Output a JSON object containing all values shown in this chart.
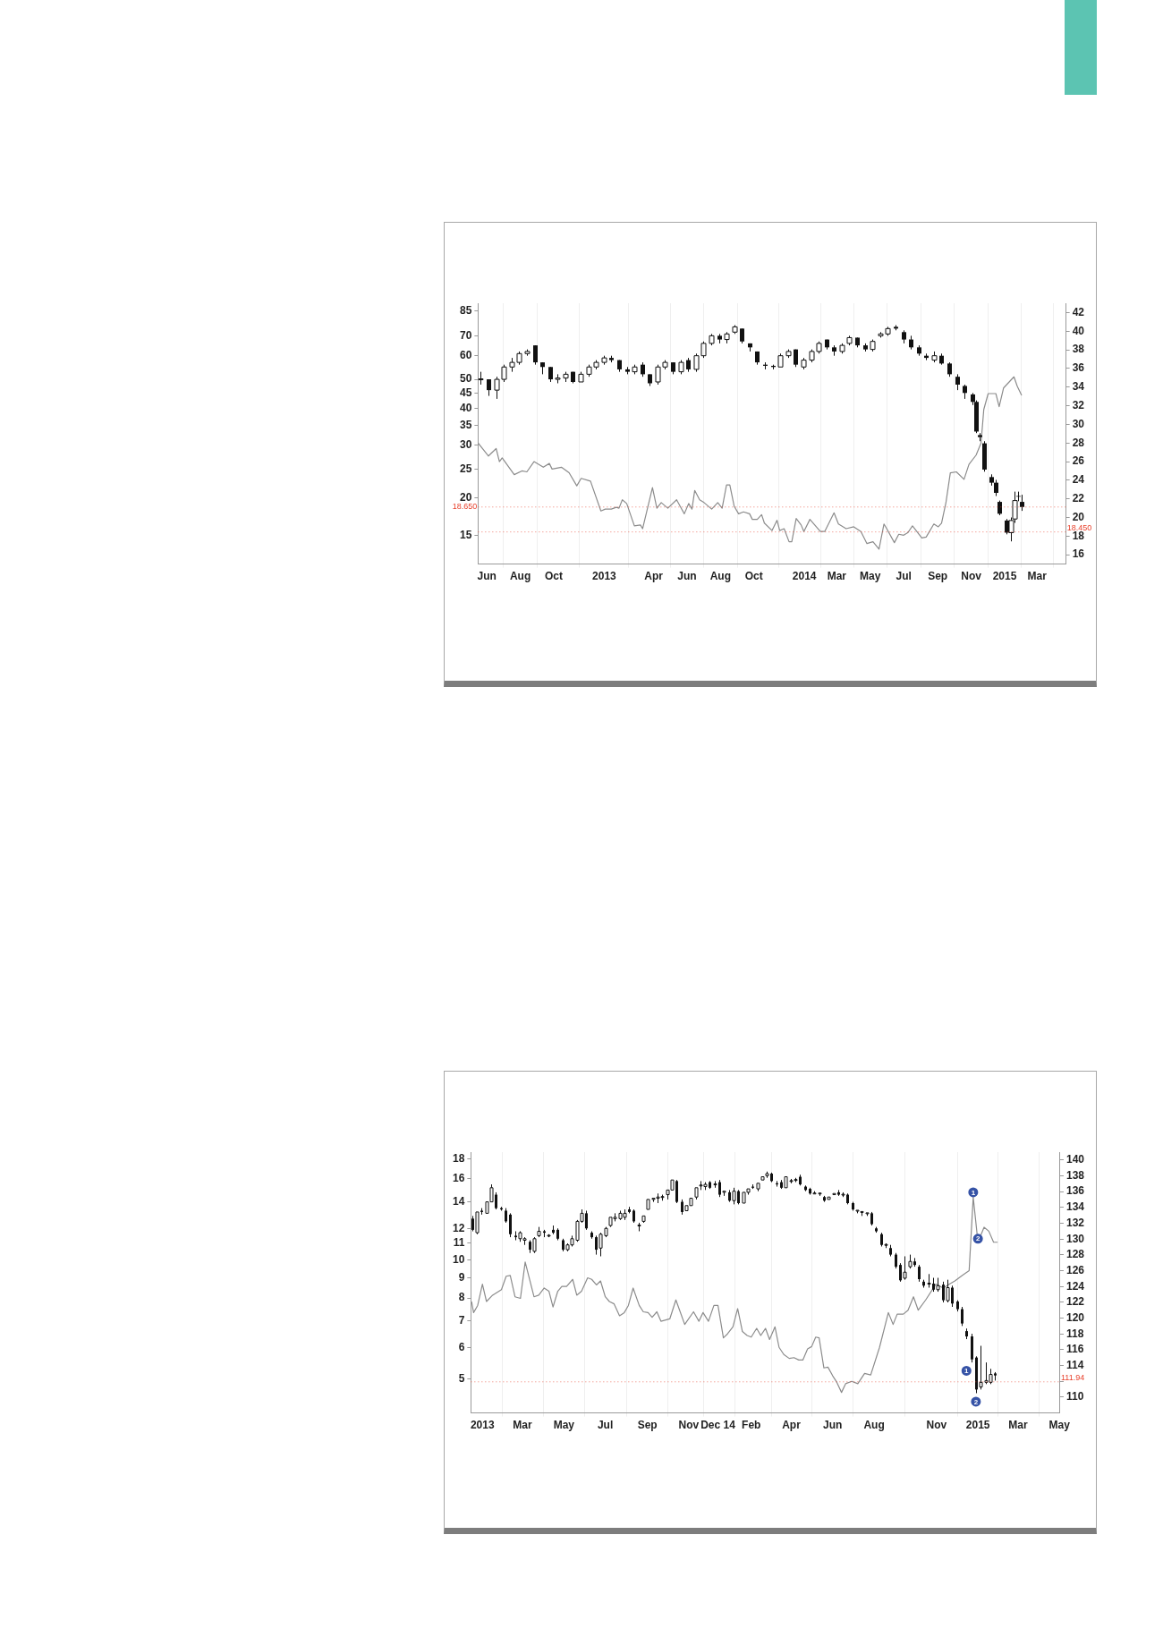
{
  "chart_data": [
    {
      "type": "candlestick",
      "color": "#111111",
      "log": true,
      "grid": "x",
      "xlim": [
        "2012-05-16",
        "2015-04-23"
      ],
      "xticks": [
        {
          "value": "2012-06-01",
          "label": "Jun"
        },
        {
          "value": "2012-08-01",
          "label": "Aug"
        },
        {
          "value": "2012-10-01",
          "label": "Oct"
        },
        {
          "value": "2013-01-01",
          "label": "2013"
        },
        {
          "value": "2013-04-01",
          "label": "Apr"
        },
        {
          "value": "2013-06-01",
          "label": "Jun"
        },
        {
          "value": "2013-08-01",
          "label": "Aug"
        },
        {
          "value": "2013-10-01",
          "label": "Oct"
        },
        {
          "value": "2014-01-01",
          "label": "2014"
        },
        {
          "value": "2014-03-01",
          "label": "Mar"
        },
        {
          "value": "2014-05-01",
          "label": "May"
        },
        {
          "value": "2014-07-01",
          "label": "Jul"
        },
        {
          "value": "2014-09-01",
          "label": "Sep"
        },
        {
          "value": "2014-11-01",
          "label": "Nov"
        },
        {
          "value": "2015-01-01",
          "label": "2015"
        },
        {
          "value": "2015-03-01",
          "label": "Mar"
        }
      ],
      "ylim": [
        12,
        90
      ],
      "yticks": [
        15,
        20,
        25,
        30,
        35,
        40,
        45,
        50,
        60,
        70,
        85
      ],
      "y2lim": [
        15,
        43
      ],
      "y2ticks": [
        16,
        18,
        20,
        22,
        24,
        26,
        28,
        30,
        32,
        34,
        36,
        38,
        40,
        42
      ],
      "x": [
        "2012-05-21",
        "2012-06-04",
        "2012-06-18",
        "2012-07-02",
        "2012-07-16",
        "2012-07-30",
        "2012-08-13",
        "2012-08-27",
        "2012-09-10",
        "2012-09-24",
        "2012-10-08",
        "2012-10-22",
        "2012-11-05",
        "2012-11-19",
        "2012-12-03",
        "2012-12-17",
        "2012-12-31",
        "2013-01-14",
        "2013-01-28",
        "2013-02-11",
        "2013-02-25",
        "2013-03-11",
        "2013-03-25",
        "2013-04-08",
        "2013-04-22",
        "2013-05-06",
        "2013-05-20",
        "2013-06-03",
        "2013-06-17",
        "2013-07-01",
        "2013-07-15",
        "2013-07-29",
        "2013-08-12",
        "2013-08-26",
        "2013-09-09",
        "2013-09-23",
        "2013-10-07",
        "2013-10-21",
        "2013-11-04",
        "2013-11-18",
        "2013-12-02",
        "2013-12-16",
        "2013-12-30",
        "2014-01-13",
        "2014-01-27",
        "2014-02-10",
        "2014-02-24",
        "2014-03-10",
        "2014-03-24",
        "2014-04-07",
        "2014-04-21",
        "2014-05-05",
        "2014-05-19",
        "2014-06-02",
        "2014-06-16",
        "2014-06-30",
        "2014-07-14",
        "2014-07-28",
        "2014-08-11",
        "2014-08-25",
        "2014-09-08",
        "2014-09-22",
        "2014-10-06",
        "2014-10-20",
        "2014-11-03",
        "2014-11-10",
        "2014-11-17",
        "2014-11-24",
        "2014-12-08",
        "2014-12-15",
        "2014-12-22",
        "2015-01-05",
        "2015-01-12",
        "2015-01-19",
        "2015-01-26",
        "2015-02-01"
      ],
      "ohlc": [
        [
          50,
          53,
          48,
          50
        ],
        [
          50,
          50,
          44,
          46
        ],
        [
          46,
          51,
          43,
          50
        ],
        [
          50,
          56,
          49,
          55
        ],
        [
          55,
          59,
          53,
          57
        ],
        [
          57,
          62,
          56,
          61
        ],
        [
          61,
          63,
          60,
          62
        ],
        [
          65,
          65,
          56,
          57
        ],
        [
          57,
          57,
          52,
          55
        ],
        [
          55,
          55,
          49,
          50
        ],
        [
          50,
          52,
          48.5,
          50.5
        ],
        [
          50.5,
          53,
          49,
          52
        ],
        [
          53,
          53,
          48.5,
          49
        ],
        [
          49,
          53,
          48.5,
          52
        ],
        [
          52,
          56,
          51,
          55
        ],
        [
          55,
          58,
          54,
          57
        ],
        [
          57,
          60,
          56,
          59
        ],
        [
          59,
          60,
          57,
          58
        ],
        [
          58,
          58,
          53,
          54
        ],
        [
          54,
          55,
          52,
          53
        ],
        [
          53,
          56,
          52,
          55
        ],
        [
          56,
          57,
          51,
          52
        ],
        [
          52,
          52,
          47.5,
          48.5
        ],
        [
          49,
          56,
          48,
          55
        ],
        [
          55,
          58,
          54,
          57
        ],
        [
          57,
          57,
          52,
          53
        ],
        [
          53,
          58,
          52,
          57
        ],
        [
          58,
          59,
          53,
          54
        ],
        [
          54,
          61,
          53,
          60
        ],
        [
          60,
          67,
          59,
          66
        ],
        [
          66,
          71,
          65,
          70
        ],
        [
          70,
          71,
          66,
          68
        ],
        [
          68,
          72,
          66,
          71
        ],
        [
          72,
          76,
          71,
          75
        ],
        [
          74,
          74,
          66,
          67
        ],
        [
          66,
          66,
          62,
          64
        ],
        [
          62,
          62,
          56,
          57
        ],
        [
          56,
          57,
          54,
          55.5
        ],
        [
          55.5,
          56,
          54,
          55
        ],
        [
          55,
          61,
          54.5,
          60
        ],
        [
          60,
          63,
          59,
          62
        ],
        [
          63,
          63,
          55,
          56
        ],
        [
          55,
          59,
          54,
          58
        ],
        [
          58,
          63,
          57,
          62
        ],
        [
          62,
          67,
          61,
          66
        ],
        [
          68,
          68,
          63,
          64
        ],
        [
          64,
          65,
          60,
          62
        ],
        [
          62,
          66,
          61,
          65
        ],
        [
          66,
          70,
          65,
          69
        ],
        [
          69,
          69,
          64,
          65
        ],
        [
          65,
          66,
          62,
          63
        ],
        [
          63,
          68,
          62,
          67
        ],
        [
          70,
          72,
          69,
          71
        ],
        [
          71,
          75,
          70,
          74
        ],
        [
          75,
          76,
          73,
          74
        ],
        [
          72,
          73,
          66,
          68
        ],
        [
          68,
          70,
          63,
          64
        ],
        [
          64,
          65,
          60,
          61
        ],
        [
          60,
          61,
          58,
          59
        ],
        [
          58,
          62,
          57,
          60
        ],
        [
          60,
          61,
          56,
          56.5
        ],
        [
          56.5,
          57,
          51,
          52
        ],
        [
          51,
          52,
          46,
          48
        ],
        [
          47.5,
          48,
          43,
          45
        ],
        [
          44.5,
          45,
          41,
          42
        ],
        [
          42,
          42.5,
          33,
          33.4
        ],
        [
          32.5,
          33,
          31,
          32
        ],
        [
          30.5,
          31,
          24.5,
          24.9
        ],
        [
          23.5,
          24,
          22,
          22.5
        ],
        [
          22.5,
          23,
          20.3,
          20.8
        ],
        [
          19.4,
          19.6,
          17.5,
          17.7
        ],
        [
          16.8,
          17,
          15.1,
          15.3
        ],
        [
          15.3,
          17.2,
          14.3,
          16.8
        ],
        [
          17,
          21,
          16.5,
          19.6
        ],
        [
          20.3,
          21,
          19.5,
          20.2
        ],
        [
          19.4,
          20.5,
          18.1,
          18.65
        ]
      ],
      "series": [
        {
          "type": "line",
          "axis": "y2",
          "color": "#8c8c8c",
          "x": [
            "2012-05-16",
            "2012-06-04",
            "2012-06-18",
            "2012-06-24",
            "2012-06-29",
            "2012-07-21",
            "2012-08-04",
            "2012-08-13",
            "2012-08-26",
            "2012-09-12",
            "2012-09-23",
            "2012-09-28",
            "2012-10-15",
            "2012-10-29",
            "2012-11-12",
            "2012-11-20",
            "2012-12-07",
            "2012-12-26",
            "2013-01-03",
            "2013-01-14",
            "2013-01-23",
            "2013-01-28",
            "2013-02-03",
            "2013-02-11",
            "2013-02-25",
            "2013-03-08",
            "2013-03-12",
            "2013-03-30",
            "2013-04-07",
            "2013-04-15",
            "2013-04-27",
            "2013-05-13",
            "2013-05-27",
            "2013-06-04",
            "2013-06-10",
            "2013-06-15",
            "2013-06-24",
            "2013-07-02",
            "2013-07-16",
            "2013-07-27",
            "2013-08-04",
            "2013-08-12",
            "2013-08-18",
            "2013-08-26",
            "2013-09-03",
            "2013-09-12",
            "2013-09-23",
            "2013-09-28",
            "2013-10-07",
            "2013-10-15",
            "2013-10-20",
            "2013-11-03",
            "2013-11-12",
            "2013-11-17",
            "2013-11-25",
            "2013-12-04",
            "2013-12-09",
            "2013-12-17",
            "2013-12-26",
            "2013-12-31",
            "2014-01-11",
            "2014-01-30",
            "2014-02-07",
            "2014-02-24",
            "2014-03-04",
            "2014-03-18",
            "2014-04-01",
            "2014-04-14",
            "2014-04-25",
            "2014-05-06",
            "2014-05-17",
            "2014-05-26",
            "2014-05-31",
            "2014-06-14",
            "2014-06-22",
            "2014-07-01",
            "2014-07-09",
            "2014-07-17",
            "2014-08-03",
            "2014-08-11",
            "2014-08-25",
            "2014-09-02",
            "2014-09-08",
            "2014-09-16",
            "2014-09-24",
            "2014-10-05",
            "2014-10-19",
            "2014-10-28",
            "2014-11-10",
            "2014-11-19",
            "2014-11-24",
            "2014-12-02",
            "2014-12-16",
            "2014-12-22",
            "2014-12-30",
            "2015-01-18",
            "2015-01-24",
            "2015-02-01"
          ],
          "values": [
            28.0,
            26.6,
            27.4,
            26.0,
            26.4,
            24.6,
            25.0,
            24.9,
            26.0,
            25.4,
            25.8,
            25.2,
            25.4,
            24.8,
            23.4,
            24.2,
            23.9,
            20.7,
            20.9,
            20.9,
            21.1,
            21.0,
            21.9,
            21.5,
            19.1,
            19.2,
            18.8,
            23.2,
            21.0,
            21.6,
            21.0,
            21.9,
            20.4,
            21.5,
            20.9,
            22.9,
            21.9,
            21.6,
            20.9,
            21.6,
            21.0,
            23.5,
            23.5,
            21.2,
            20.4,
            20.6,
            20.4,
            19.8,
            19.8,
            20.3,
            19.4,
            18.6,
            19.7,
            18.6,
            18.8,
            17.4,
            17.4,
            19.9,
            19.2,
            18.5,
            19.8,
            18.5,
            18.5,
            20.5,
            19.3,
            18.8,
            19.0,
            18.5,
            17.2,
            17.4,
            16.6,
            19.3,
            18.8,
            17.3,
            18.2,
            18.1,
            18.4,
            19.1,
            17.8,
            17.9,
            19.3,
            19.0,
            19.4,
            21.6,
            24.8,
            24.9,
            24.1,
            25.7,
            26.7,
            28.0,
            31.6,
            33.3,
            33.3,
            31.9,
            33.9,
            35.1,
            34.1,
            33.1
          ]
        }
      ],
      "ref_lines": [
        {
          "axis": "y",
          "value": 18.65,
          "label": "18.650",
          "color": "#e8412c",
          "line_style": "dotted"
        },
        {
          "axis": "y2",
          "value": 18.45,
          "label": "18.450",
          "color": "#e8412c",
          "line_style": "dotted"
        }
      ]
    },
    {
      "type": "candlestick",
      "color": "#111111",
      "log": true,
      "grid": "x",
      "xlim": [
        "2012-12-15",
        "2015-05-02"
      ],
      "xticks": [
        {
          "value": "2013-01-01",
          "label": "2013"
        },
        {
          "value": "2013-03-01",
          "label": "Mar"
        },
        {
          "value": "2013-05-01",
          "label": "May"
        },
        {
          "value": "2013-07-01",
          "label": "Jul"
        },
        {
          "value": "2013-09-01",
          "label": "Sep"
        },
        {
          "value": "2013-11-01",
          "label": "Nov"
        },
        {
          "value": "2013-12-14",
          "label": "Dec 14"
        },
        {
          "value": "2014-02-01",
          "label": "Feb"
        },
        {
          "value": "2014-04-01",
          "label": "Apr"
        },
        {
          "value": "2014-06-01",
          "label": "Jun"
        },
        {
          "value": "2014-08-01",
          "label": "Aug"
        },
        {
          "value": "2014-11-01",
          "label": "Nov"
        },
        {
          "value": "2015-01-01",
          "label": "2015"
        },
        {
          "value": "2015-03-01",
          "label": "Mar"
        },
        {
          "value": "2015-05-01",
          "label": "May"
        }
      ],
      "ylim": [
        4.1,
        18.7
      ],
      "yticks": [
        5,
        6,
        7,
        8,
        9,
        10,
        11,
        12,
        14,
        16,
        18
      ],
      "y2lim": [
        108,
        141
      ],
      "y2ticks": [
        110,
        {
          "value": 112,
          "label": null
        },
        114,
        116,
        118,
        120,
        122,
        124,
        126,
        128,
        130,
        132,
        134,
        136,
        138,
        140
      ],
      "x": [
        "2012-12-17",
        "2012-12-24",
        "2012-12-31",
        "2013-01-07",
        "2013-01-14",
        "2013-01-21",
        "2013-01-28",
        "2013-02-04",
        "2013-02-11",
        "2013-02-18",
        "2013-02-25",
        "2013-03-04",
        "2013-03-11",
        "2013-03-18",
        "2013-03-25",
        "2013-04-01",
        "2013-04-08",
        "2013-04-15",
        "2013-04-22",
        "2013-04-29",
        "2013-05-06",
        "2013-05-13",
        "2013-05-20",
        "2013-05-27",
        "2013-06-03",
        "2013-06-10",
        "2013-06-17",
        "2013-06-24",
        "2013-07-01",
        "2013-07-08",
        "2013-07-15",
        "2013-07-22",
        "2013-07-29",
        "2013-08-05",
        "2013-08-12",
        "2013-08-19",
        "2013-08-26",
        "2013-09-02",
        "2013-09-09",
        "2013-09-16",
        "2013-09-23",
        "2013-09-30",
        "2013-10-07",
        "2013-10-14",
        "2013-10-21",
        "2013-10-28",
        "2013-11-04",
        "2013-11-11",
        "2013-11-18",
        "2013-11-25",
        "2013-12-02",
        "2013-12-09",
        "2013-12-16",
        "2013-12-23",
        "2013-12-30",
        "2014-01-06",
        "2014-01-13",
        "2014-01-20",
        "2014-01-27",
        "2014-02-03",
        "2014-02-10",
        "2014-02-17",
        "2014-02-24",
        "2014-03-03",
        "2014-03-10",
        "2014-03-17",
        "2014-03-24",
        "2014-03-31",
        "2014-04-07",
        "2014-04-14",
        "2014-04-21",
        "2014-04-28",
        "2014-05-05",
        "2014-05-12",
        "2014-05-19",
        "2014-05-26",
        "2014-06-02",
        "2014-06-09",
        "2014-06-16",
        "2014-06-23",
        "2014-06-30",
        "2014-07-07",
        "2014-07-14",
        "2014-07-21",
        "2014-07-28",
        "2014-08-04",
        "2014-08-11",
        "2014-08-18",
        "2014-08-25",
        "2014-09-01",
        "2014-09-08",
        "2014-09-15",
        "2014-09-22",
        "2014-09-29",
        "2014-10-06",
        "2014-10-13",
        "2014-10-20",
        "2014-10-27",
        "2014-11-03",
        "2014-11-10",
        "2014-11-17",
        "2014-11-24",
        "2014-12-01",
        "2014-12-08",
        "2014-12-15",
        "2014-12-22",
        "2014-12-29",
        "2015-01-05",
        "2015-01-12",
        "2015-01-19",
        "2015-01-26"
      ],
      "ohlc": [
        [
          12.7,
          12.9,
          11.8,
          11.9
        ],
        [
          11.7,
          13.3,
          11.6,
          13.2
        ],
        [
          13.3,
          13.5,
          13.0,
          13.2
        ],
        [
          13.1,
          14.1,
          13.0,
          14.0
        ],
        [
          14.0,
          15.5,
          13.9,
          15.2
        ],
        [
          14.6,
          14.8,
          13.4,
          13.5
        ],
        [
          13.5,
          13.6,
          13.3,
          13.4
        ],
        [
          13.3,
          13.5,
          12.4,
          12.5
        ],
        [
          13.0,
          13.1,
          11.4,
          11.6
        ],
        [
          11.5,
          11.8,
          11.2,
          11.4
        ],
        [
          11.3,
          11.8,
          11.1,
          11.7
        ],
        [
          11.2,
          11.4,
          10.9,
          11.3
        ],
        [
          11.1,
          11.2,
          10.4,
          10.6
        ],
        [
          10.5,
          11.4,
          10.4,
          11.3
        ],
        [
          11.5,
          12.1,
          11.4,
          11.8
        ],
        [
          11.8,
          11.9,
          11.4,
          11.7
        ],
        [
          11.5,
          11.6,
          11.4,
          11.5
        ],
        [
          11.9,
          12.2,
          11.6,
          11.7
        ],
        [
          11.9,
          12.0,
          11.2,
          11.3
        ],
        [
          11.2,
          11.3,
          10.5,
          10.6
        ],
        [
          10.6,
          11.0,
          10.5,
          10.9
        ],
        [
          10.9,
          11.5,
          10.8,
          11.3
        ],
        [
          11.2,
          12.6,
          11.1,
          12.5
        ],
        [
          12.5,
          13.4,
          12.4,
          13.1
        ],
        [
          13.1,
          13.3,
          11.9,
          12.0
        ],
        [
          11.7,
          11.8,
          11.3,
          11.4
        ],
        [
          11.4,
          11.5,
          10.3,
          10.6
        ],
        [
          10.7,
          11.7,
          10.2,
          11.6
        ],
        [
          11.5,
          12.1,
          11.4,
          12.0
        ],
        [
          12.2,
          12.9,
          12.1,
          12.8
        ],
        [
          12.7,
          13.1,
          12.5,
          12.8
        ],
        [
          12.7,
          13.3,
          12.6,
          13.1
        ],
        [
          12.8,
          13.4,
          12.6,
          13.1
        ],
        [
          13.4,
          13.6,
          13.1,
          13.2
        ],
        [
          13.3,
          13.4,
          12.4,
          12.5
        ],
        [
          12.2,
          12.4,
          11.8,
          12.2
        ],
        [
          12.5,
          13.0,
          12.4,
          12.9
        ],
        [
          13.4,
          14.3,
          13.3,
          14.2
        ],
        [
          14.2,
          14.4,
          14.0,
          14.3
        ],
        [
          14.3,
          14.7,
          13.9,
          14.4
        ],
        [
          14.4,
          14.6,
          14.1,
          14.4
        ],
        [
          14.6,
          15.1,
          14.2,
          15.0
        ],
        [
          15.0,
          16.0,
          14.9,
          15.9
        ],
        [
          15.8,
          15.9,
          13.9,
          14.0
        ],
        [
          14.0,
          14.2,
          13.0,
          13.2
        ],
        [
          13.3,
          13.8,
          13.2,
          13.7
        ],
        [
          13.7,
          14.4,
          13.6,
          14.3
        ],
        [
          14.4,
          15.3,
          14.2,
          15.2
        ],
        [
          15.4,
          15.8,
          15.0,
          15.4
        ],
        [
          15.3,
          15.7,
          15.0,
          15.5
        ],
        [
          15.7,
          15.8,
          15.1,
          15.2
        ],
        [
          15.5,
          15.8,
          15.2,
          15.5
        ],
        [
          15.7,
          15.9,
          14.4,
          14.6
        ],
        [
          14.8,
          15.0,
          14.5,
          14.9
        ],
        [
          14.8,
          15.0,
          14.0,
          14.1
        ],
        [
          14.1,
          15.2,
          13.8,
          14.9
        ],
        [
          14.9,
          15.0,
          13.8,
          13.9
        ],
        [
          13.9,
          14.9,
          13.8,
          14.8
        ],
        [
          14.8,
          15.2,
          14.6,
          15.1
        ],
        [
          15.3,
          15.5,
          15.1,
          15.2
        ],
        [
          15.1,
          15.7,
          14.9,
          15.6
        ],
        [
          15.9,
          16.3,
          15.8,
          16.2
        ],
        [
          16.3,
          16.7,
          16.1,
          16.5
        ],
        [
          16.5,
          16.6,
          15.7,
          15.8
        ],
        [
          15.6,
          15.8,
          15.3,
          15.5
        ],
        [
          15.7,
          15.9,
          15.1,
          15.2
        ],
        [
          15.2,
          16.3,
          15.1,
          16.2
        ],
        [
          15.8,
          16.0,
          15.6,
          15.8
        ],
        [
          15.9,
          16.1,
          15.7,
          15.9
        ],
        [
          16.2,
          16.4,
          15.4,
          15.5
        ],
        [
          15.3,
          15.4,
          14.9,
          15.0
        ],
        [
          15.1,
          15.2,
          14.6,
          14.7
        ],
        [
          14.7,
          14.9,
          14.6,
          14.7
        ],
        [
          14.7,
          14.8,
          14.5,
          14.7
        ],
        [
          14.4,
          14.5,
          14.0,
          14.1
        ],
        [
          14.2,
          14.5,
          14.1,
          14.4
        ],
        [
          14.6,
          14.8,
          14.5,
          14.7
        ],
        [
          14.8,
          15.0,
          14.5,
          14.6
        ],
        [
          14.6,
          14.8,
          14.4,
          14.6
        ],
        [
          14.6,
          14.7,
          13.8,
          13.9
        ],
        [
          13.9,
          14.0,
          13.3,
          13.4
        ],
        [
          13.3,
          13.4,
          13.1,
          13.3
        ],
        [
          13.2,
          13.3,
          12.9,
          13.2
        ],
        [
          13.1,
          13.2,
          12.9,
          13.1
        ],
        [
          13.1,
          13.2,
          12.2,
          12.3
        ],
        [
          12.0,
          12.1,
          11.7,
          11.8
        ],
        [
          11.6,
          11.7,
          10.8,
          10.9
        ],
        [
          10.9,
          11.0,
          10.7,
          10.9
        ],
        [
          10.7,
          10.9,
          10.2,
          10.3
        ],
        [
          10.3,
          10.4,
          9.5,
          9.6
        ],
        [
          9.7,
          9.8,
          8.8,
          8.87
        ],
        [
          8.98,
          10.2,
          8.9,
          9.3
        ],
        [
          9.6,
          10.3,
          9.5,
          9.9
        ],
        [
          9.9,
          10.1,
          9.6,
          9.7
        ],
        [
          9.6,
          9.7,
          8.8,
          8.93
        ],
        [
          8.8,
          8.9,
          8.5,
          8.6
        ],
        [
          8.7,
          9.2,
          8.5,
          8.7
        ],
        [
          8.7,
          9.0,
          8.3,
          8.4
        ],
        [
          8.4,
          9.0,
          8.3,
          8.6
        ],
        [
          8.65,
          8.8,
          7.8,
          7.9
        ],
        [
          7.88,
          8.9,
          7.8,
          8.5
        ],
        [
          8.5,
          8.6,
          7.6,
          7.75
        ],
        [
          7.84,
          7.9,
          7.4,
          7.5
        ],
        [
          7.5,
          7.6,
          6.8,
          6.9
        ],
        [
          6.6,
          6.7,
          6.3,
          6.4
        ],
        [
          6.4,
          6.5,
          5.5,
          5.6
        ],
        [
          5.66,
          5.7,
          4.6,
          4.7
        ],
        [
          4.77,
          6.06,
          4.7,
          4.9
        ],
        [
          4.9,
          5.5,
          4.85,
          4.95
        ],
        [
          4.9,
          5.3,
          4.85,
          5.13
        ],
        [
          5.16,
          5.2,
          4.95,
          5.1
        ]
      ],
      "series": [
        {
          "type": "line",
          "axis": "y2",
          "color": "#8c8c8c",
          "x": [
            "2012-12-16",
            "2012-12-19",
            "2012-12-25",
            "2013-01-01",
            "2013-01-07",
            "2013-01-16",
            "2013-01-29",
            "2013-02-05",
            "2013-02-11",
            "2013-02-18",
            "2013-02-26",
            "2013-03-05",
            "2013-03-18",
            "2013-03-25",
            "2013-04-02",
            "2013-04-09",
            "2013-04-15",
            "2013-04-22",
            "2013-04-28",
            "2013-05-05",
            "2013-05-14",
            "2013-05-20",
            "2013-05-27",
            "2013-06-05",
            "2013-06-11",
            "2013-06-18",
            "2013-06-24",
            "2013-07-01",
            "2013-07-07",
            "2013-07-14",
            "2013-07-22",
            "2013-07-29",
            "2013-08-04",
            "2013-08-11",
            "2013-08-20",
            "2013-08-26",
            "2013-09-02",
            "2013-09-08",
            "2013-09-15",
            "2013-09-21",
            "2013-10-04",
            "2013-10-13",
            "2013-10-26",
            "2013-11-08",
            "2013-11-16",
            "2013-11-22",
            "2013-11-30",
            "2013-12-08",
            "2013-12-14",
            "2013-12-22",
            "2013-12-28",
            "2014-01-05",
            "2014-01-12",
            "2014-01-19",
            "2014-01-26",
            "2014-02-01",
            "2014-02-09",
            "2014-02-15",
            "2014-02-22",
            "2014-02-28",
            "2014-03-08",
            "2014-03-14",
            "2014-03-21",
            "2014-03-29",
            "2014-04-05",
            "2014-04-12",
            "2014-04-18",
            "2014-04-25",
            "2014-05-01",
            "2014-05-07",
            "2014-05-12",
            "2014-05-19",
            "2014-05-25",
            "2014-06-01",
            "2014-06-07",
            "2014-06-14",
            "2014-06-20",
            "2014-06-29",
            "2014-07-08",
            "2014-07-18",
            "2014-07-27",
            "2014-08-09",
            "2014-08-22",
            "2014-08-29",
            "2014-09-04",
            "2014-09-13",
            "2014-09-20",
            "2014-09-28",
            "2014-10-05",
            "2014-10-16",
            "2014-10-31",
            "2014-11-11",
            "2014-11-20",
            "2014-11-28",
            "2014-12-09",
            "2014-12-19",
            "2014-12-25",
            "2015-01-01",
            "2015-01-10",
            "2015-01-17",
            "2015-01-24",
            "2015-01-30"
          ],
          "values": [
            122.1,
            120.7,
            121.6,
            124.3,
            122.1,
            122.9,
            123.6,
            125.3,
            125.4,
            122.7,
            122.5,
            127.1,
            122.7,
            122.9,
            123.8,
            123.4,
            121.4,
            123.4,
            124.0,
            124.0,
            124.9,
            122.9,
            123.4,
            125.1,
            124.9,
            124.2,
            124.7,
            122.7,
            122.1,
            121.8,
            120.3,
            120.7,
            121.6,
            123.8,
            121.6,
            120.8,
            120.7,
            120.1,
            120.8,
            119.6,
            119.9,
            122.3,
            119.2,
            120.8,
            119.6,
            120.7,
            119.6,
            121.6,
            121.6,
            117.5,
            118.0,
            118.9,
            121.2,
            118.3,
            117.8,
            117.6,
            118.7,
            117.8,
            118.7,
            117.3,
            118.9,
            116.3,
            115.4,
            114.9,
            115.0,
            114.7,
            114.7,
            116.1,
            116.4,
            117.6,
            117.5,
            113.7,
            113.8,
            112.7,
            111.9,
            110.6,
            111.7,
            112.0,
            111.7,
            113.0,
            112.8,
            116.3,
            120.7,
            119.2,
            120.5,
            120.5,
            121.0,
            122.7,
            121.0,
            122.3,
            124.3,
            123.8,
            124.3,
            124.7,
            125.4,
            126.0,
            135.3,
            129.6,
            131.5,
            131.0,
            129.6,
            129.6
          ]
        }
      ],
      "ref_lines": [
        {
          "axis": "y2",
          "value": 111.94,
          "label": "111.94",
          "color": "#e8412c",
          "line_style": "dotted"
        }
      ],
      "annotations": [
        {
          "text": "1",
          "x": "2014-12-25",
          "y": 14.8
        },
        {
          "text": "2",
          "x": "2015-01-01",
          "y": 11.3
        },
        {
          "text": "1",
          "x": "2014-12-15",
          "y": 5.24
        },
        {
          "text": "2",
          "x": "2014-12-29",
          "y": 4.38
        }
      ]
    }
  ]
}
